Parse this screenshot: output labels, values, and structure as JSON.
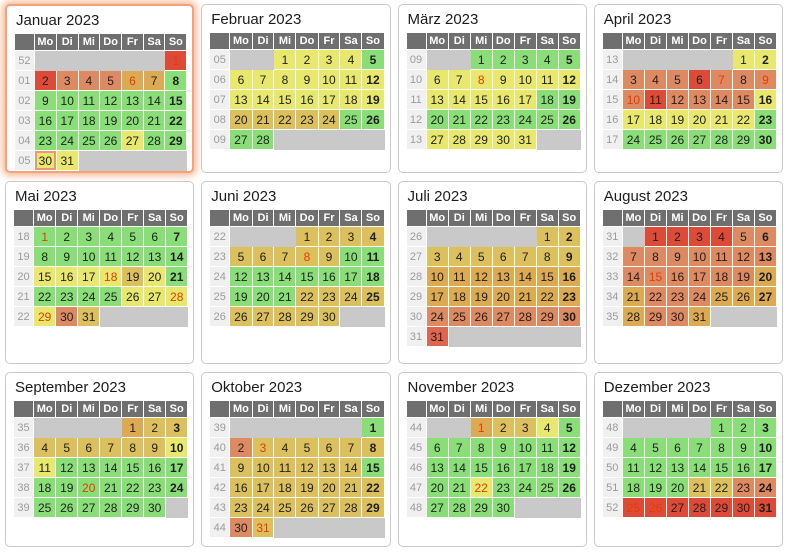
{
  "calendar": {
    "year": "2023",
    "day_headers": [
      "Mo",
      "Di",
      "Mi",
      "Do",
      "Fr",
      "Sa",
      "So"
    ],
    "palette": {
      "g": "#8ade78",
      "y": "#e9e86e",
      "t": "#dcc05e",
      "o": "#dcaa52",
      "s": "#dd8a62",
      "q": "#e0654e",
      "r": "#dd4b38",
      "e": "#c9c9c9",
      "holiday_text": "#e63b00",
      "header_bg": "#6f6f6f",
      "weeknum_bg": "#f0f0f0",
      "weeknum_text": "#9b9b9b",
      "highlight_border": "#f2a281"
    },
    "months": [
      {
        "name": "Januar 2023",
        "highlighted": true,
        "weeks": [
          {
            "n": "52",
            "d": [
              "",
              "",
              "",
              "",
              "",
              "",
              "1|r|h"
            ]
          },
          {
            "n": "01",
            "d": [
              "2|r",
              "3|s",
              "4|s",
              "5|s",
              "6|o|h",
              "7|o",
              "8|g"
            ]
          },
          {
            "n": "02",
            "d": [
              "9|g",
              "10|g",
              "11|g",
              "12|g",
              "13|g",
              "14|g",
              "15|g"
            ]
          },
          {
            "n": "03",
            "d": [
              "16|g",
              "17|g",
              "18|g",
              "19|g",
              "20|g",
              "21|g",
              "22|g"
            ]
          },
          {
            "n": "04",
            "d": [
              "23|g",
              "24|g",
              "25|g",
              "26|g",
              "27|y",
              "28|g",
              "29|g"
            ]
          },
          {
            "n": "05",
            "d": [
              "30|y|m",
              "31|y",
              "",
              "",
              "",
              "",
              ""
            ]
          }
        ]
      },
      {
        "name": "Februar 2023",
        "highlighted": false,
        "weeks": [
          {
            "n": "05",
            "d": [
              "",
              "",
              "1|y",
              "2|y",
              "3|y",
              "4|y",
              "5|g"
            ]
          },
          {
            "n": "06",
            "d": [
              "6|y",
              "7|y",
              "8|y",
              "9|y",
              "10|y",
              "11|y",
              "12|y"
            ]
          },
          {
            "n": "07",
            "d": [
              "13|y",
              "14|y",
              "15|y",
              "16|y",
              "17|y",
              "18|y",
              "19|y"
            ]
          },
          {
            "n": "08",
            "d": [
              "20|t",
              "21|t",
              "22|t",
              "23|t",
              "24|t",
              "25|g",
              "26|g"
            ]
          },
          {
            "n": "09",
            "d": [
              "27|g",
              "28|g",
              "",
              "",
              "",
              "",
              ""
            ]
          }
        ]
      },
      {
        "name": "März 2023",
        "highlighted": false,
        "weeks": [
          {
            "n": "09",
            "d": [
              "",
              "",
              "1|g",
              "2|g",
              "3|g",
              "4|g",
              "5|g"
            ]
          },
          {
            "n": "10",
            "d": [
              "6|y",
              "7|y",
              "8|y|h",
              "9|y",
              "10|y",
              "11|y",
              "12|y"
            ]
          },
          {
            "n": "11",
            "d": [
              "13|y",
              "14|y",
              "15|y",
              "16|y",
              "17|y",
              "18|g",
              "19|g"
            ]
          },
          {
            "n": "12",
            "d": [
              "20|g",
              "21|g",
              "22|g",
              "23|g",
              "24|g",
              "25|g",
              "26|g"
            ]
          },
          {
            "n": "13",
            "d": [
              "27|y",
              "28|y",
              "29|y",
              "30|y",
              "31|y",
              "",
              ""
            ]
          }
        ]
      },
      {
        "name": "April 2023",
        "highlighted": false,
        "weeks": [
          {
            "n": "13",
            "d": [
              "",
              "",
              "",
              "",
              "",
              "1|y",
              "2|y"
            ]
          },
          {
            "n": "14",
            "d": [
              "3|s",
              "4|s",
              "5|s",
              "6|r",
              "7|s|h",
              "8|s",
              "9|s|h"
            ]
          },
          {
            "n": "15",
            "d": [
              "10|s|h",
              "11|r",
              "12|s",
              "13|s",
              "14|s",
              "15|s",
              "16|y"
            ]
          },
          {
            "n": "16",
            "d": [
              "17|y",
              "18|y",
              "19|y",
              "20|y",
              "21|y",
              "22|y",
              "23|g"
            ]
          },
          {
            "n": "17",
            "d": [
              "24|g",
              "25|g",
              "26|g",
              "27|g",
              "28|g",
              "29|g",
              "30|g"
            ]
          }
        ]
      },
      {
        "name": "Mai 2023",
        "highlighted": false,
        "weeks": [
          {
            "n": "18",
            "d": [
              "1|g|h",
              "2|g",
              "3|g",
              "4|g",
              "5|g",
              "6|g",
              "7|g"
            ]
          },
          {
            "n": "19",
            "d": [
              "8|g",
              "9|g",
              "10|g",
              "11|g",
              "12|g",
              "13|g",
              "14|g"
            ]
          },
          {
            "n": "20",
            "d": [
              "15|y",
              "16|y",
              "17|y",
              "18|y|h",
              "19|t",
              "20|y",
              "21|g"
            ]
          },
          {
            "n": "21",
            "d": [
              "22|g",
              "23|g",
              "24|g",
              "25|g",
              "26|y",
              "27|y",
              "28|y|h"
            ]
          },
          {
            "n": "22",
            "d": [
              "29|y|h",
              "30|s",
              "31|t",
              "",
              "",
              "",
              ""
            ]
          }
        ]
      },
      {
        "name": "Juni 2023",
        "highlighted": false,
        "weeks": [
          {
            "n": "22",
            "d": [
              "",
              "",
              "",
              "1|t",
              "2|t",
              "3|t",
              "4|t"
            ]
          },
          {
            "n": "23",
            "d": [
              "5|t",
              "6|t",
              "7|t",
              "8|t|h",
              "9|t",
              "10|g",
              "11|g"
            ]
          },
          {
            "n": "24",
            "d": [
              "12|g",
              "13|g",
              "14|g",
              "15|g",
              "16|g",
              "17|g",
              "18|g"
            ]
          },
          {
            "n": "25",
            "d": [
              "19|g",
              "20|g",
              "21|g",
              "22|t",
              "23|t",
              "24|t",
              "25|t"
            ]
          },
          {
            "n": "26",
            "d": [
              "26|t",
              "27|t",
              "28|t",
              "29|t",
              "30|t",
              "",
              ""
            ]
          }
        ]
      },
      {
        "name": "Juli 2023",
        "highlighted": false,
        "weeks": [
          {
            "n": "26",
            "d": [
              "",
              "",
              "",
              "",
              "",
              "1|t",
              "2|t"
            ]
          },
          {
            "n": "27",
            "d": [
              "3|t",
              "4|t",
              "5|t",
              "6|t",
              "7|t",
              "8|t",
              "9|t"
            ]
          },
          {
            "n": "28",
            "d": [
              "10|o",
              "11|o",
              "12|o",
              "13|o",
              "14|o",
              "15|o",
              "16|o"
            ]
          },
          {
            "n": "29",
            "d": [
              "17|o",
              "18|o",
              "19|o",
              "20|o",
              "21|o",
              "22|o",
              "23|o"
            ]
          },
          {
            "n": "30",
            "d": [
              "24|s",
              "25|s",
              "26|s",
              "27|s",
              "28|s",
              "29|s",
              "30|s"
            ]
          },
          {
            "n": "31",
            "d": [
              "31|q",
              "",
              "",
              "",
              "",
              "",
              ""
            ]
          }
        ]
      },
      {
        "name": "August 2023",
        "highlighted": false,
        "weeks": [
          {
            "n": "31",
            "d": [
              "",
              "1|r",
              "2|r",
              "3|r",
              "4|r",
              "5|s",
              "6|s"
            ]
          },
          {
            "n": "32",
            "d": [
              "7|s",
              "8|s",
              "9|s",
              "10|s",
              "11|s",
              "12|s",
              "13|s"
            ]
          },
          {
            "n": "33",
            "d": [
              "14|s",
              "15|s|h",
              "16|s",
              "17|s",
              "18|s",
              "19|s",
              "20|o"
            ]
          },
          {
            "n": "34",
            "d": [
              "21|o",
              "22|s",
              "23|s",
              "24|s",
              "25|o",
              "26|o",
              "27|o"
            ]
          },
          {
            "n": "35",
            "d": [
              "28|o",
              "29|s",
              "30|s",
              "31|o",
              "",
              "",
              ""
            ]
          }
        ]
      },
      {
        "name": "September 2023",
        "highlighted": false,
        "weeks": [
          {
            "n": "35",
            "d": [
              "",
              "",
              "",
              "",
              "1|o",
              "2|t",
              "3|t"
            ]
          },
          {
            "n": "36",
            "d": [
              "4|t",
              "5|t",
              "6|t",
              "7|t",
              "8|t",
              "9|t",
              "10|y"
            ]
          },
          {
            "n": "37",
            "d": [
              "11|y",
              "12|g",
              "13|g",
              "14|g",
              "15|g",
              "16|g",
              "17|g"
            ]
          },
          {
            "n": "38",
            "d": [
              "18|g",
              "19|g",
              "20|g|h",
              "21|g",
              "22|g",
              "23|g",
              "24|g"
            ]
          },
          {
            "n": "39",
            "d": [
              "25|g",
              "26|g",
              "27|g",
              "28|g",
              "29|g",
              "30|g",
              ""
            ]
          }
        ]
      },
      {
        "name": "Oktober 2023",
        "highlighted": false,
        "weeks": [
          {
            "n": "39",
            "d": [
              "",
              "",
              "",
              "",
              "",
              "",
              "1|g"
            ]
          },
          {
            "n": "40",
            "d": [
              "2|s",
              "3|t|h",
              "4|t",
              "5|t",
              "6|t",
              "7|t",
              "8|t"
            ]
          },
          {
            "n": "41",
            "d": [
              "9|t",
              "10|t",
              "11|t",
              "12|t",
              "13|t",
              "14|t",
              "15|g"
            ]
          },
          {
            "n": "42",
            "d": [
              "16|t",
              "17|t",
              "18|t",
              "19|t",
              "20|t",
              "21|t",
              "22|t"
            ]
          },
          {
            "n": "43",
            "d": [
              "23|t",
              "24|t",
              "25|t",
              "26|t",
              "27|t",
              "28|t",
              "29|t"
            ]
          },
          {
            "n": "44",
            "d": [
              "30|s",
              "31|t|h",
              "",
              "",
              "",
              "",
              ""
            ]
          }
        ]
      },
      {
        "name": "November 2023",
        "highlighted": false,
        "weeks": [
          {
            "n": "44",
            "d": [
              "",
              "",
              "1|o|h",
              "2|t",
              "3|t",
              "4|y",
              "5|g"
            ]
          },
          {
            "n": "45",
            "d": [
              "6|g",
              "7|g",
              "8|g",
              "9|g",
              "10|g",
              "11|g",
              "12|g"
            ]
          },
          {
            "n": "46",
            "d": [
              "13|g",
              "14|g",
              "15|g",
              "16|g",
              "17|g",
              "18|g",
              "19|g"
            ]
          },
          {
            "n": "47",
            "d": [
              "20|g",
              "21|g",
              "22|y|h",
              "23|g",
              "24|g",
              "25|g",
              "26|g"
            ]
          },
          {
            "n": "48",
            "d": [
              "27|g",
              "28|g",
              "29|g",
              "30|g",
              "",
              "",
              ""
            ]
          }
        ]
      },
      {
        "name": "Dezember 2023",
        "highlighted": false,
        "weeks": [
          {
            "n": "48",
            "d": [
              "",
              "",
              "",
              "",
              "1|g",
              "2|g",
              "3|g"
            ]
          },
          {
            "n": "49",
            "d": [
              "4|g",
              "5|g",
              "6|g",
              "7|g",
              "8|g",
              "9|g",
              "10|g"
            ]
          },
          {
            "n": "50",
            "d": [
              "11|g",
              "12|g",
              "13|g",
              "14|g",
              "15|g",
              "16|g",
              "17|g"
            ]
          },
          {
            "n": "51",
            "d": [
              "18|g",
              "19|g",
              "20|g",
              "21|t",
              "22|t",
              "23|s",
              "24|s"
            ]
          },
          {
            "n": "52",
            "d": [
              "25|r|h",
              "26|r|h",
              "27|r",
              "28|r",
              "29|r",
              "30|r",
              "31|r"
            ]
          }
        ]
      }
    ]
  }
}
